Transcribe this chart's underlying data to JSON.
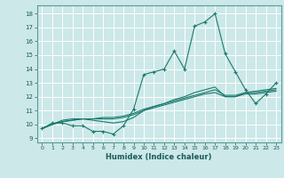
{
  "xlabel": "Humidex (Indice chaleur)",
  "xlim": [
    -0.5,
    23.5
  ],
  "ylim": [
    8.7,
    18.6
  ],
  "xticks": [
    0,
    1,
    2,
    3,
    4,
    5,
    6,
    7,
    8,
    9,
    10,
    11,
    12,
    13,
    14,
    15,
    16,
    17,
    18,
    19,
    20,
    21,
    22,
    23
  ],
  "yticks": [
    9,
    10,
    11,
    12,
    13,
    14,
    15,
    16,
    17,
    18
  ],
  "background_color": "#cce8e8",
  "grid_color": "#b0d8d8",
  "line_color": "#1a7a6e",
  "series_zigzag": [
    9.7,
    10.1,
    10.1,
    9.9,
    9.9,
    9.5,
    9.5,
    9.3,
    9.9,
    11.1,
    13.6,
    13.8,
    14.0,
    15.3,
    14.0,
    17.1,
    17.4,
    18.0,
    15.1,
    13.8,
    12.5,
    11.5,
    12.2,
    13.0
  ],
  "series_linear": [
    [
      9.7,
      10.0,
      10.3,
      10.4,
      10.4,
      10.3,
      10.2,
      10.1,
      10.2,
      10.5,
      11.0,
      11.3,
      11.5,
      11.8,
      12.0,
      12.3,
      12.5,
      12.7,
      12.0,
      12.0,
      12.3,
      12.4,
      12.5,
      12.6
    ],
    [
      9.7,
      10.0,
      10.2,
      10.3,
      10.4,
      10.4,
      10.4,
      10.4,
      10.5,
      10.7,
      11.0,
      11.2,
      11.4,
      11.6,
      11.8,
      12.0,
      12.2,
      12.3,
      12.0,
      12.0,
      12.2,
      12.2,
      12.3,
      12.4
    ],
    [
      9.7,
      10.0,
      10.2,
      10.3,
      10.4,
      10.4,
      10.5,
      10.5,
      10.6,
      10.8,
      11.1,
      11.3,
      11.5,
      11.7,
      11.9,
      12.1,
      12.3,
      12.5,
      12.1,
      12.1,
      12.3,
      12.3,
      12.4,
      12.5
    ]
  ]
}
